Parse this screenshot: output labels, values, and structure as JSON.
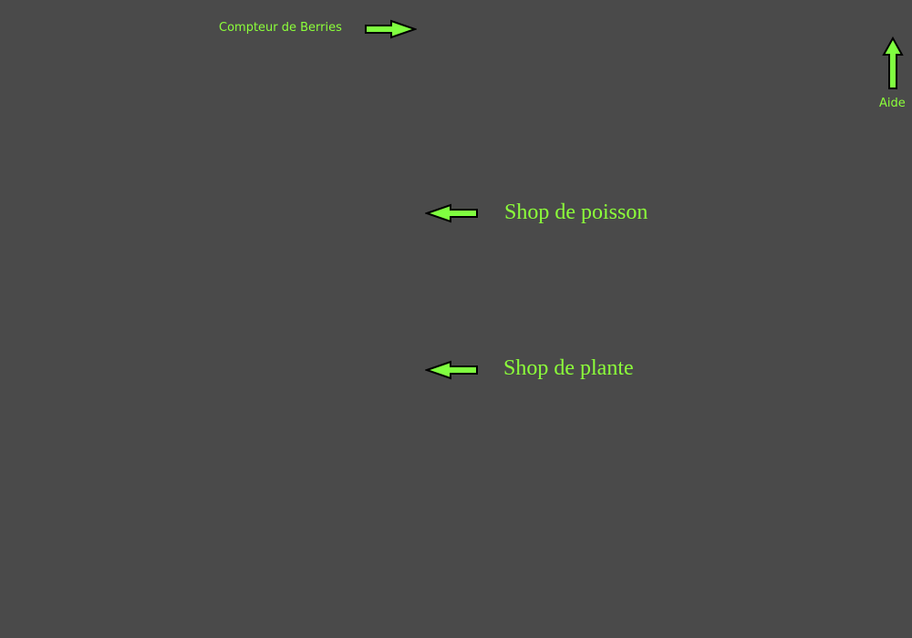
{
  "hud": {
    "berries_counter_label": "Compteur de Berries",
    "help_label": "Aide"
  },
  "shops": {
    "fish_shop_label": "Shop de poisson",
    "plant_shop_label": "Shop de plante"
  },
  "icons": {
    "berries_arrow": "arrow-right-icon",
    "help_arrow": "arrow-up-icon",
    "fish_shop_arrow": "arrow-left-icon",
    "plant_shop_arrow": "arrow-left-icon"
  },
  "colors": {
    "background": "#4a4a4a",
    "accent": "#8cff3a",
    "arrow_fill": "#80ff40",
    "arrow_outline": "#000000"
  }
}
